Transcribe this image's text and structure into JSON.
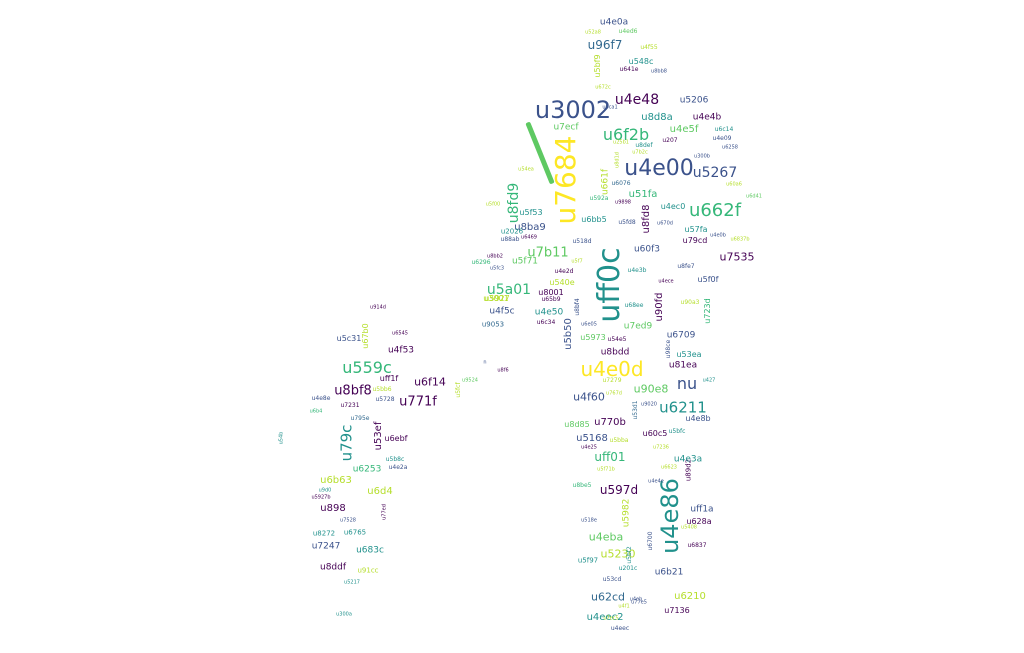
{
  "palette": {
    "dark_purple": "#440154",
    "indigo": "#3b528b",
    "slate_blue": "#31688e",
    "teal": "#21918c",
    "sea_green": "#35b779",
    "light_green": "#5ec962",
    "lime": "#b5de2b",
    "yellow": "#fde725"
  },
  "slash_mark": {
    "text": "",
    "color": "#5ec962"
  },
  "words": [
    {
      "t": "u4e0a",
      "c": "#3b528b"
    },
    {
      "t": "u52a8",
      "c": "#b5de2b"
    },
    {
      "t": "u4ed6",
      "c": "#5ec962"
    },
    {
      "t": "u96f7",
      "c": "#31688e"
    },
    {
      "t": "u4f55",
      "c": "#b5de2b"
    },
    {
      "t": "u5bf9",
      "c": "#b5de2b"
    },
    {
      "t": "u548c",
      "c": "#21918c"
    },
    {
      "t": "u641e",
      "c": "#440154"
    },
    {
      "t": "u8bb8",
      "c": "#3b528b"
    },
    {
      "t": "u672c",
      "c": "#b5de2b"
    },
    {
      "t": "u3002",
      "c": "#3b528b"
    },
    {
      "t": "u4e48",
      "c": "#440154"
    },
    {
      "t": "u6ca1",
      "c": "#3b528b"
    },
    {
      "t": "u5206",
      "c": "#3b528b"
    },
    {
      "t": "u8d8a",
      "c": "#21918c"
    },
    {
      "t": "u4e4b",
      "c": "#440154"
    },
    {
      "t": "u7ecf",
      "c": "#5ec962"
    },
    {
      "t": "u6f2b",
      "c": "#35b779"
    },
    {
      "t": "u4e5f",
      "c": "#5ec962"
    },
    {
      "t": "u6c14",
      "c": "#21918c"
    },
    {
      "t": "u207",
      "c": "#440154"
    },
    {
      "t": "u4e09",
      "c": "#3b528b"
    },
    {
      "t": "u7684",
      "c": "#fde725"
    },
    {
      "t": "u25b1",
      "c": "#b5de2b"
    },
    {
      "t": "u8def",
      "c": "#21918c"
    },
    {
      "t": "u7b2c",
      "c": "#b5de2b"
    },
    {
      "t": "u6258",
      "c": "#3b528b"
    },
    {
      "t": "u4e00",
      "c": "#3b528b"
    },
    {
      "t": "u5267",
      "c": "#3b528b"
    },
    {
      "t": "u300b",
      "c": "#3b528b"
    },
    {
      "t": "u8d1d",
      "c": "#b5de2b"
    },
    {
      "t": "u60a6",
      "c": "#b5de2b"
    },
    {
      "t": "u6d41",
      "c": "#5ec962"
    },
    {
      "t": "u54ea",
      "c": "#b5de2b"
    },
    {
      "t": "u6076",
      "c": "#31688e"
    },
    {
      "t": "u661f",
      "c": "#b5de2b"
    },
    {
      "t": "u8fd9",
      "c": "#35b779"
    },
    {
      "t": "u51fa",
      "c": "#35b779"
    },
    {
      "t": "u592a",
      "c": "#35b779"
    },
    {
      "t": "u9898",
      "c": "#440154"
    },
    {
      "t": "u662f",
      "c": "#35b779"
    },
    {
      "t": "u5f00",
      "c": "#b5de2b"
    },
    {
      "t": "u5f53",
      "c": "#21918c"
    },
    {
      "t": "u6bb5",
      "c": "#21918c"
    },
    {
      "t": "u5fd8",
      "c": "#3b528b"
    },
    {
      "t": "u8fd8",
      "c": "#440154"
    },
    {
      "t": "u4ec0",
      "c": "#21918c"
    },
    {
      "t": "u670d",
      "c": "#3b528b"
    },
    {
      "t": "u8ba9",
      "c": "#3b528b"
    },
    {
      "t": "u2026",
      "c": "#21918c"
    },
    {
      "t": "u57fa",
      "c": "#21918c"
    },
    {
      "t": "u88ab",
      "c": "#3b528b"
    },
    {
      "t": "u6469",
      "c": "#440154"
    },
    {
      "t": "u518d",
      "c": "#3b528b"
    },
    {
      "t": "uff0c",
      "c": "#21918c"
    },
    {
      "t": "u4e0b",
      "c": "#3b528b"
    },
    {
      "t": "u79cd",
      "c": "#440154"
    },
    {
      "t": "u8bb2",
      "c": "#440154"
    },
    {
      "t": "u7b11",
      "c": "#5ec962"
    },
    {
      "t": "u60f3",
      "c": "#3b528b"
    },
    {
      "t": "u7535",
      "c": "#440154"
    },
    {
      "t": "u5f71",
      "c": "#5ec962"
    },
    {
      "t": "u5f7",
      "c": "#b5de2b"
    },
    {
      "t": "u6296",
      "c": "#35b779"
    },
    {
      "t": "u5fc3",
      "c": "#3b528b"
    },
    {
      "t": "u4e2d",
      "c": "#440154"
    },
    {
      "t": "u4e3b",
      "c": "#21918c"
    },
    {
      "t": "u8fe7",
      "c": "#3b528b"
    },
    {
      "t": "u540e",
      "c": "#b5de2b"
    },
    {
      "t": "u4ece",
      "c": "#440154"
    },
    {
      "t": "u5f0f",
      "c": "#3b528b"
    },
    {
      "t": "u5a01",
      "c": "#35b779"
    },
    {
      "t": "u8001",
      "c": "#440154"
    },
    {
      "t": "u3001",
      "c": "#b5de2b"
    },
    {
      "t": "u65b9",
      "c": "#440154"
    },
    {
      "t": "u8bf4",
      "c": "#3b528b"
    },
    {
      "t": "u90a3",
      "c": "#b5de2b"
    },
    {
      "t": "u723d",
      "c": "#35b779"
    },
    {
      "t": "u4f5c",
      "c": "#3b528b"
    },
    {
      "t": "u4e50",
      "c": "#21918c"
    },
    {
      "t": "u6c34",
      "c": "#440154"
    },
    {
      "t": "u68ee",
      "c": "#21918c"
    },
    {
      "t": "u90fd",
      "c": "#440154"
    },
    {
      "t": "u9053",
      "c": "#31688e"
    },
    {
      "t": "u6e05",
      "c": "#3b528b"
    },
    {
      "t": "u7ed9",
      "c": "#5ec962"
    },
    {
      "t": "u5b50",
      "c": "#3b528b"
    },
    {
      "t": "u5973",
      "c": "#5ec962"
    },
    {
      "t": "u54e5",
      "c": "#440154"
    },
    {
      "t": "u6709",
      "c": "#3b528b"
    },
    {
      "t": "u98ce",
      "c": "#3b528b"
    },
    {
      "t": "u8bdd",
      "c": "#440154"
    },
    {
      "t": "u53ea",
      "c": "#21918c"
    },
    {
      "t": "u81ea",
      "c": "#440154"
    },
    {
      "t": "u4e0d",
      "c": "#fde725"
    },
    {
      "t": "u7279",
      "c": "#b5de2b"
    },
    {
      "t": "u427",
      "c": "#21918c"
    },
    {
      "t": "nu",
      "c": "#3b528b"
    },
    {
      "t": "u90e8",
      "c": "#5ec962"
    },
    {
      "t": "u4f60",
      "c": "#3b528b"
    },
    {
      "t": "u767d",
      "c": "#b5de2b"
    },
    {
      "t": "u9020",
      "c": "#3b528b"
    },
    {
      "t": "u53d1",
      "c": "#31688e"
    },
    {
      "t": "u6211",
      "c": "#21918c"
    },
    {
      "t": "u8d85",
      "c": "#5ec962"
    },
    {
      "t": "u770b",
      "c": "#440154"
    },
    {
      "t": "u4e8b",
      "c": "#3b528b"
    },
    {
      "t": "u60c5",
      "c": "#440154"
    },
    {
      "t": "u5bfc",
      "c": "#21918c"
    },
    {
      "t": "u5168",
      "c": "#3b528b"
    },
    {
      "t": "u5bba",
      "c": "#b5de2b"
    },
    {
      "t": "u4e25",
      "c": "#440154"
    },
    {
      "t": "u7236",
      "c": "#b5de2b"
    },
    {
      "t": "uff01",
      "c": "#35b779"
    },
    {
      "t": "u89d2",
      "c": "#440154"
    },
    {
      "t": "u4e3a",
      "c": "#21918c"
    },
    {
      "t": "u5f71b",
      "c": "#b5de2b"
    },
    {
      "t": "u6623",
      "c": "#b5de2b"
    },
    {
      "t": "u8be5",
      "c": "#35b779"
    },
    {
      "t": "u597d",
      "c": "#440154"
    },
    {
      "t": "u4e86",
      "c": "#21918c"
    },
    {
      "t": "u4e4e",
      "c": "#3b528b"
    },
    {
      "t": "u5982",
      "c": "#b5de2b"
    },
    {
      "t": "uff1a",
      "c": "#3b528b"
    },
    {
      "t": "u518e",
      "c": "#3b528b"
    },
    {
      "t": "u628a",
      "c": "#440154"
    },
    {
      "t": "u5408",
      "c": "#b5de2b"
    },
    {
      "t": "u4eba",
      "c": "#5ec962"
    },
    {
      "t": "u6700",
      "c": "#3b528b"
    },
    {
      "t": "u6837",
      "c": "#440154"
    },
    {
      "t": "u5230",
      "c": "#b5de2b"
    },
    {
      "t": "u5bf2",
      "c": "#21918c"
    },
    {
      "t": "u5f97",
      "c": "#21918c"
    },
    {
      "t": "u201c",
      "c": "#21918c"
    },
    {
      "t": "u6b21",
      "c": "#3b528b"
    },
    {
      "t": "u53cd",
      "c": "#3b528b"
    },
    {
      "t": "u62cd",
      "c": "#31688e"
    },
    {
      "t": "u6210",
      "c": "#b5de2b"
    },
    {
      "t": "u7136",
      "c": "#440154"
    },
    {
      "t": "u77e5",
      "c": "#3b528b"
    },
    {
      "t": "u4f1",
      "c": "#b5de2b"
    },
    {
      "t": "u4eec",
      "c": "#3b528b"
    },
    {
      "t": "u5927",
      "c": "#b5de2b"
    },
    {
      "t": "u914d",
      "c": "#440154"
    },
    {
      "t": "u67b0",
      "c": "#b5de2b"
    },
    {
      "t": "u6545",
      "c": "#440154"
    },
    {
      "t": "u4f53",
      "c": "#440154"
    },
    {
      "t": "u5c31",
      "c": "#3b528b"
    },
    {
      "t": "u559c",
      "c": "#35b779"
    },
    {
      "t": "uff1f",
      "c": "#440154"
    },
    {
      "t": "u6f14",
      "c": "#440154"
    },
    {
      "t": "u8bf8",
      "c": "#440154"
    },
    {
      "t": "u5bb6",
      "c": "#b5de2b"
    },
    {
      "t": "u4e8e",
      "c": "#3b528b"
    },
    {
      "t": "u5728",
      "c": "#3b528b"
    },
    {
      "t": "u771f",
      "c": "#440154"
    },
    {
      "t": "u5fcf",
      "c": "#b5de2b"
    },
    {
      "t": "u9524",
      "c": "#5ec962"
    },
    {
      "t": "u53ef",
      "c": "#440154"
    },
    {
      "t": "u795e",
      "c": "#31688e"
    },
    {
      "t": "u79c",
      "c": "#21918c"
    },
    {
      "t": "u7231",
      "c": "#440154"
    },
    {
      "t": "u6ebf",
      "c": "#440154"
    },
    {
      "t": "u5b8c",
      "c": "#21918c"
    },
    {
      "t": "u4e2a",
      "c": "#3b528b"
    },
    {
      "t": "u6253",
      "c": "#35b779"
    },
    {
      "t": "u6b63",
      "c": "#b5de2b"
    },
    {
      "t": "u6d4",
      "c": "#b5de2b"
    },
    {
      "t": "u9d0",
      "c": "#21918c"
    },
    {
      "t": "u6b4",
      "c": "#35b779"
    },
    {
      "t": "u54b",
      "c": "#21918c"
    },
    {
      "t": "u5927b",
      "c": "#440154"
    },
    {
      "t": "u898",
      "c": "#440154"
    },
    {
      "t": "u77ed",
      "c": "#440154"
    },
    {
      "t": "u7528",
      "c": "#3b528b"
    },
    {
      "t": "u8272",
      "c": "#21918c"
    },
    {
      "t": "u6765",
      "c": "#21918c"
    },
    {
      "t": "u7247",
      "c": "#3b528b"
    },
    {
      "t": "u683c",
      "c": "#21918c"
    },
    {
      "t": "u8ddf",
      "c": "#440154"
    },
    {
      "t": "u91cc",
      "c": "#b5de2b"
    },
    {
      "t": "u5217",
      "c": "#21918c"
    },
    {
      "t": "u300a",
      "c": "#21918c"
    },
    {
      "t": "u8f6",
      "c": "#440154"
    },
    {
      "t": "n",
      "c": "#3b528b"
    },
    {
      "t": "u4eec2",
      "c": "#21918c"
    },
    {
      "t": "u7ec5",
      "c": "#b5de2b"
    },
    {
      "t": "u6837b",
      "c": "#b5de2b"
    },
    {
      "t": "u4eb",
      "c": "#3b528b"
    }
  ]
}
